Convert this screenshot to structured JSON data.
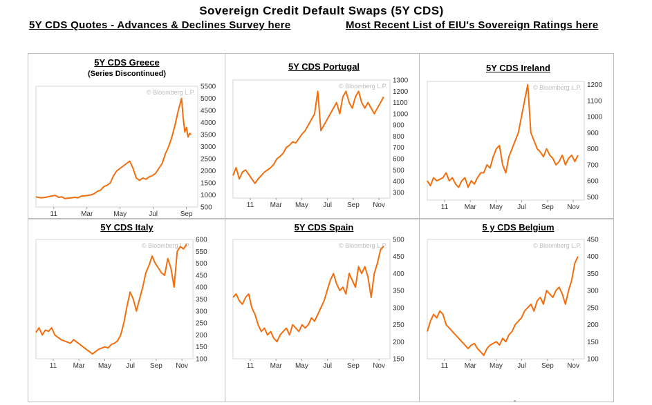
{
  "header": {
    "title": "Sovereign Credit Default Swaps (5Y CDS)",
    "link_left": "5Y CDS Quotes - Advances & Declines Survey here",
    "link_right": "Most Recent List of EIU's Sovereign Ratings here"
  },
  "footer": {
    "dash": "-"
  },
  "colors": {
    "line": "#f26d0c",
    "frame": "#d4d4d4",
    "grid": "#bdbdbd"
  },
  "chart_data": [
    {
      "type": "line",
      "title": "5Y CDS Greece",
      "subtitle": "(Series Discontinued)",
      "watermark": "© Bloomberg L.P.",
      "ylim": [
        500,
        5500
      ],
      "yticks": [
        500,
        1000,
        1500,
        2000,
        2500,
        3000,
        3500,
        4000,
        4500,
        5000,
        5500
      ],
      "xticks": [
        "11",
        "Mar",
        "May",
        "Jul",
        "Sep"
      ],
      "x": [
        0,
        3,
        6,
        9,
        12,
        14,
        16,
        18,
        20,
        22,
        24,
        26,
        28,
        30,
        32,
        34,
        36,
        38,
        40,
        42,
        44,
        46,
        48,
        50,
        52,
        54,
        56,
        58,
        60,
        62,
        64,
        66,
        68,
        70,
        72,
        74,
        76,
        78,
        80,
        82,
        84,
        86,
        88,
        90,
        91,
        92,
        93,
        94,
        95,
        96
      ],
      "values": [
        920,
        880,
        900,
        950,
        980,
        900,
        920,
        850,
        870,
        880,
        900,
        880,
        950,
        960,
        980,
        1000,
        1050,
        1150,
        1200,
        1350,
        1400,
        1500,
        1800,
        2000,
        2100,
        2200,
        2300,
        2400,
        2100,
        1700,
        1600,
        1700,
        1650,
        1750,
        1800,
        1900,
        2100,
        2300,
        2700,
        3000,
        3400,
        3900,
        4500,
        5000,
        4200,
        3600,
        3800,
        3400,
        3550,
        3500
      ],
      "xmax": 100
    },
    {
      "type": "line",
      "title": "5Y CDS Portugal",
      "watermark": "© Bloomberg L.P.",
      "ylim": [
        250,
        1300
      ],
      "yticks": [
        300,
        400,
        500,
        600,
        700,
        800,
        900,
        1000,
        1100,
        1200,
        1300
      ],
      "xticks": [
        "11",
        "Mar",
        "May",
        "Jul",
        "Sep",
        "Nov"
      ],
      "x": [
        0,
        2,
        4,
        6,
        8,
        10,
        12,
        14,
        16,
        18,
        20,
        22,
        24,
        26,
        28,
        30,
        32,
        34,
        36,
        38,
        40,
        42,
        44,
        46,
        48,
        50,
        52,
        54,
        56,
        58,
        60,
        62,
        64,
        66,
        68,
        70,
        72,
        74,
        76,
        78,
        80,
        82,
        84,
        86,
        88,
        90,
        92,
        94,
        96
      ],
      "values": [
        450,
        520,
        420,
        480,
        500,
        460,
        420,
        380,
        420,
        450,
        480,
        500,
        520,
        550,
        600,
        620,
        650,
        700,
        720,
        750,
        740,
        780,
        820,
        850,
        900,
        950,
        1000,
        1200,
        850,
        900,
        950,
        1000,
        1050,
        1100,
        1000,
        1150,
        1200,
        1100,
        1050,
        1150,
        1200,
        1100,
        1050,
        1100,
        1050,
        1000,
        1050,
        1100,
        1150
      ],
      "xmax": 100
    },
    {
      "type": "line",
      "title": "5Y CDS Ireland",
      "watermark": "© Bloomberg L.P.",
      "ylim": [
        480,
        1220
      ],
      "yticks": [
        500,
        600,
        700,
        800,
        900,
        1000,
        1100,
        1200
      ],
      "xticks": [
        "11",
        "Mar",
        "May",
        "Jul",
        "Sep",
        "Nov"
      ],
      "x": [
        0,
        2,
        4,
        6,
        8,
        10,
        12,
        14,
        16,
        18,
        20,
        22,
        24,
        26,
        28,
        30,
        32,
        34,
        36,
        38,
        40,
        42,
        44,
        46,
        48,
        50,
        52,
        54,
        56,
        58,
        60,
        62,
        64,
        66,
        68,
        70,
        72,
        74,
        76,
        78,
        80,
        82,
        84,
        86,
        88,
        90,
        92,
        94,
        96
      ],
      "values": [
        600,
        570,
        620,
        600,
        610,
        620,
        650,
        600,
        620,
        580,
        560,
        600,
        620,
        560,
        600,
        580,
        620,
        650,
        650,
        700,
        680,
        750,
        800,
        820,
        700,
        650,
        750,
        800,
        850,
        900,
        1000,
        1100,
        1200,
        900,
        850,
        800,
        780,
        750,
        800,
        760,
        740,
        700,
        720,
        760,
        700,
        740,
        760,
        720,
        760
      ],
      "xmax": 100
    },
    {
      "type": "line",
      "title": "5Y CDS Italy",
      "watermark": "© Bloomberg L.P.",
      "ylim": [
        100,
        600
      ],
      "yticks": [
        100,
        150,
        200,
        250,
        300,
        350,
        400,
        450,
        500,
        550,
        600
      ],
      "xticks": [
        "11",
        "Mar",
        "May",
        "Jul",
        "Sep",
        "Nov"
      ],
      "x": [
        0,
        2,
        4,
        6,
        8,
        10,
        12,
        14,
        16,
        18,
        20,
        22,
        24,
        26,
        28,
        30,
        32,
        34,
        36,
        38,
        40,
        42,
        44,
        46,
        48,
        50,
        52,
        54,
        56,
        58,
        60,
        62,
        64,
        66,
        68,
        70,
        72,
        74,
        76,
        78,
        80,
        82,
        84,
        86,
        88,
        90,
        92,
        94,
        96
      ],
      "values": [
        210,
        230,
        200,
        220,
        215,
        230,
        200,
        190,
        180,
        175,
        170,
        165,
        180,
        170,
        160,
        150,
        140,
        130,
        120,
        130,
        140,
        145,
        150,
        145,
        160,
        165,
        175,
        200,
        250,
        320,
        380,
        350,
        300,
        350,
        400,
        460,
        490,
        530,
        500,
        480,
        460,
        450,
        520,
        480,
        400,
        550,
        570,
        560,
        580
      ],
      "xmax": 100
    },
    {
      "type": "line",
      "title": "5Y CDS Spain",
      "watermark": "© Bloomberg L.P.",
      "ylim": [
        150,
        500
      ],
      "yticks": [
        150,
        200,
        250,
        300,
        350,
        400,
        450,
        500
      ],
      "xticks": [
        "11",
        "Mar",
        "May",
        "Jul",
        "Sep",
        "Nov"
      ],
      "x": [
        0,
        2,
        4,
        6,
        8,
        10,
        12,
        14,
        16,
        18,
        20,
        22,
        24,
        26,
        28,
        30,
        32,
        34,
        36,
        38,
        40,
        42,
        44,
        46,
        48,
        50,
        52,
        54,
        56,
        58,
        60,
        62,
        64,
        66,
        68,
        70,
        72,
        74,
        76,
        78,
        80,
        82,
        84,
        86,
        88,
        90,
        92,
        94,
        96
      ],
      "values": [
        330,
        340,
        320,
        310,
        330,
        340,
        300,
        280,
        250,
        230,
        240,
        220,
        230,
        210,
        200,
        220,
        230,
        240,
        220,
        250,
        240,
        230,
        250,
        240,
        250,
        270,
        260,
        280,
        300,
        320,
        350,
        380,
        400,
        370,
        350,
        360,
        340,
        400,
        380,
        360,
        420,
        400,
        420,
        390,
        330,
        400,
        430,
        470,
        480
      ],
      "xmax": 100
    },
    {
      "type": "line",
      "title": "5 y CDS Belgium",
      "watermark": "© Bloomberg L.P.",
      "ylim": [
        100,
        450
      ],
      "yticks": [
        100,
        150,
        200,
        250,
        300,
        350,
        400,
        450
      ],
      "xticks": [
        "11",
        "Mar",
        "May",
        "Jul",
        "Sep",
        "Nov"
      ],
      "x": [
        0,
        2,
        4,
        6,
        8,
        10,
        12,
        14,
        16,
        18,
        20,
        22,
        24,
        26,
        28,
        30,
        32,
        34,
        36,
        38,
        40,
        42,
        44,
        46,
        48,
        50,
        52,
        54,
        56,
        58,
        60,
        62,
        64,
        66,
        68,
        70,
        72,
        74,
        76,
        78,
        80,
        82,
        84,
        86,
        88,
        90,
        92,
        94,
        96
      ],
      "values": [
        180,
        210,
        230,
        220,
        240,
        230,
        200,
        190,
        180,
        170,
        160,
        150,
        140,
        130,
        140,
        145,
        130,
        120,
        110,
        130,
        140,
        145,
        150,
        140,
        160,
        150,
        170,
        180,
        200,
        210,
        220,
        240,
        250,
        260,
        240,
        270,
        280,
        260,
        300,
        290,
        280,
        300,
        310,
        290,
        260,
        300,
        330,
        380,
        400
      ],
      "xmax": 100
    }
  ]
}
